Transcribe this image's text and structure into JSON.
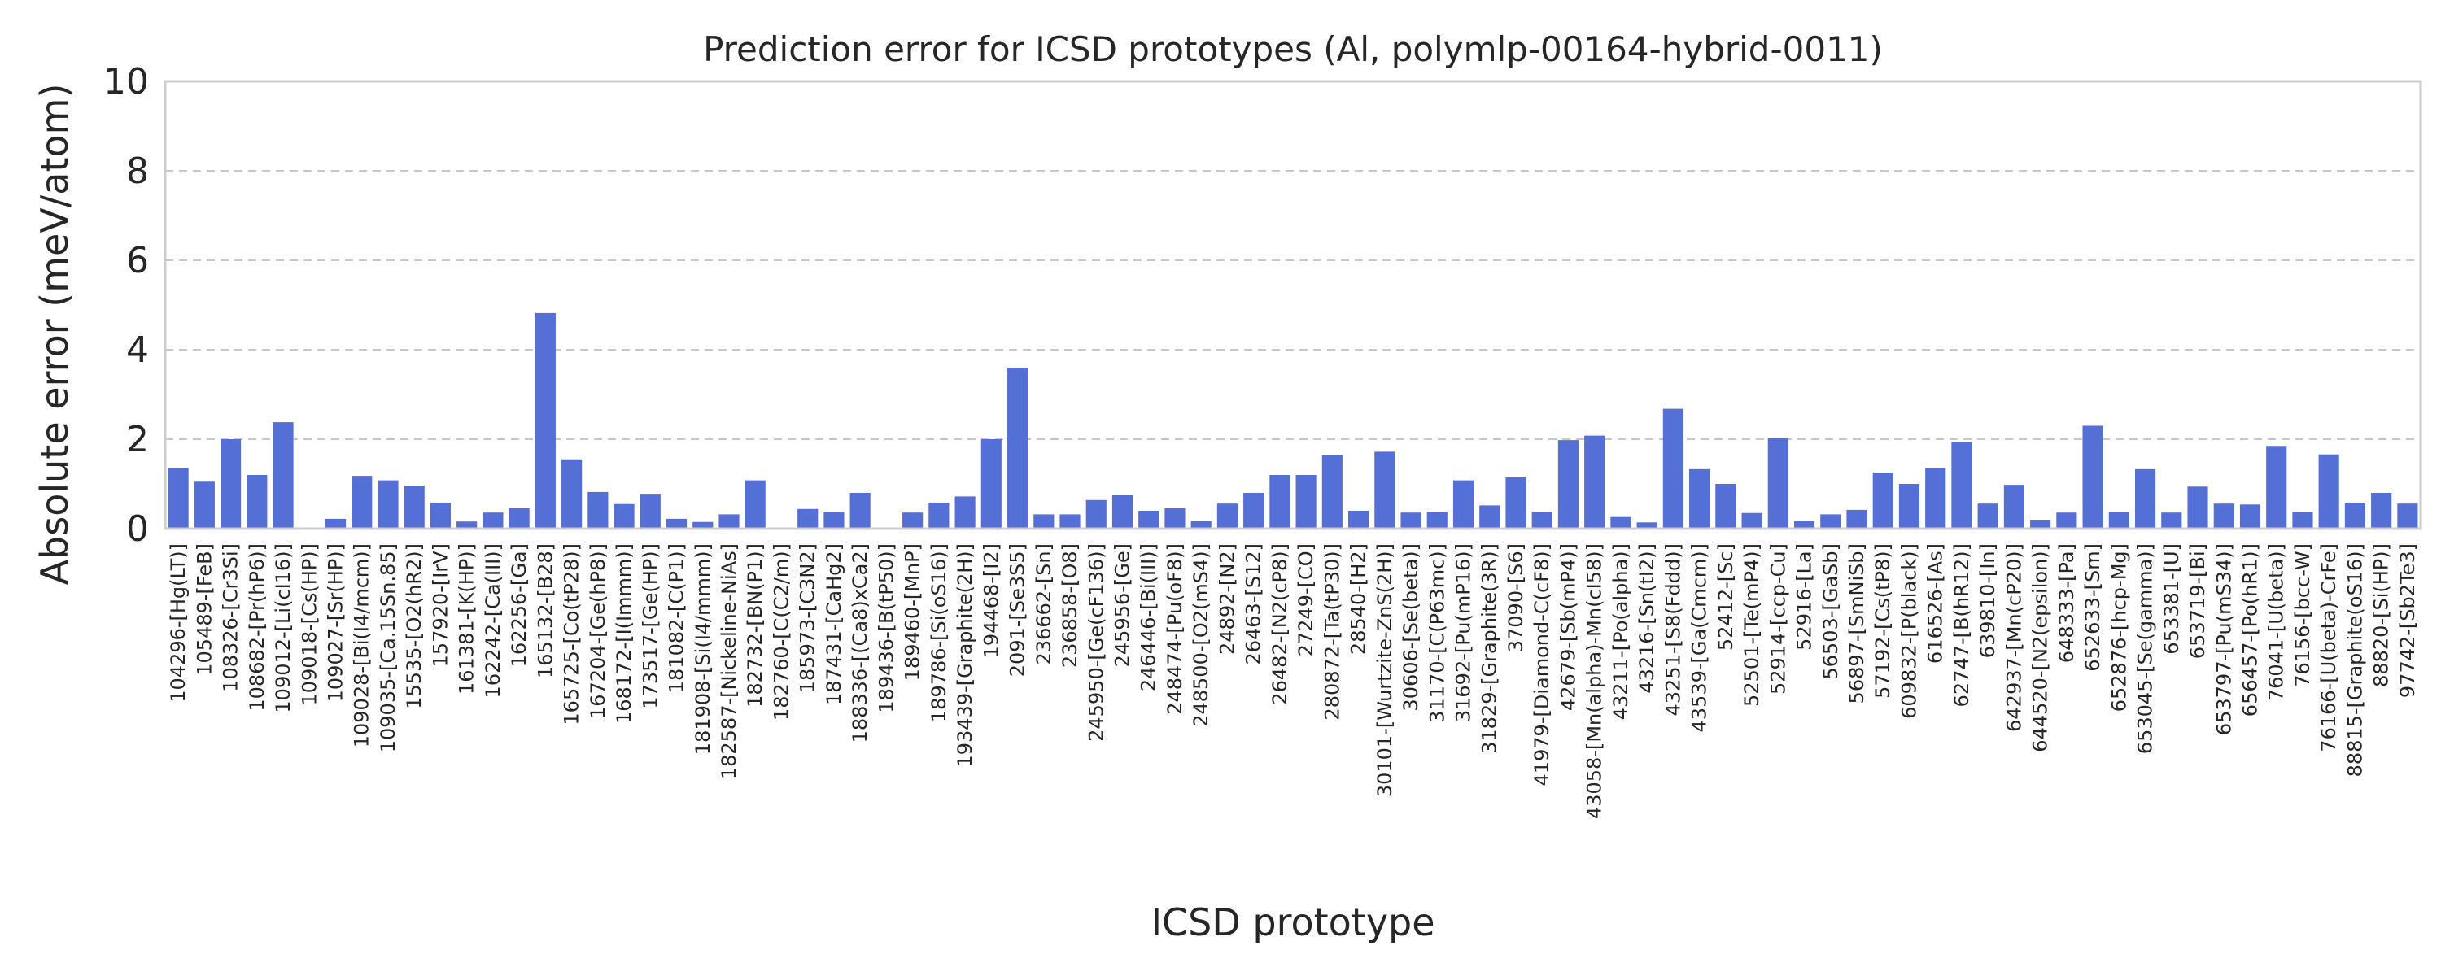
{
  "chart_data": {
    "type": "bar",
    "title": "Prediction error for ICSD prototypes (Al, polymlp-00164-hybrid-0011)",
    "xlabel": "ICSD prototype",
    "ylabel": "Absolute error (meV/atom)",
    "ylim": [
      0,
      10
    ],
    "yticks": [
      0,
      2,
      4,
      6,
      8,
      10
    ],
    "grid": true,
    "colors": {
      "bar": "#5470d6",
      "grid": "#c8c8c8",
      "frame": "#cccccc"
    },
    "categories": [
      "104296-[Hg(LT)]",
      "105489-[FeB]",
      "108326-[Cr3Si]",
      "108682-[Pr(hP6)]",
      "109012-[Li(cI16)]",
      "109018-[Cs(HP)]",
      "109027-[Sr(HP)]",
      "109028-[Bi(I4/mcm)]",
      "109035-[Ca.15Sn.85]",
      "15535-[O2(hR2)]",
      "157920-[IrV]",
      "161381-[K(HP)]",
      "162242-[Ca(III)]",
      "162256-[Ga]",
      "165132-[B28]",
      "165725-[Co(tP28)]",
      "167204-[Ge(hP8)]",
      "168172-[I(Immm)]",
      "173517-[Ge(HP)]",
      "181082-[C(P1)]",
      "181908-[Si(I4/mmm)]",
      "182587-[Nickeline-NiAs]",
      "182732-[BN(P1)]",
      "182760-[C(C2/m)]",
      "185973-[C3N2]",
      "187431-[CaHg2]",
      "188336-[(Ca8)xCa2]",
      "189436-[B(tP50)]",
      "189460-[MnP]",
      "189786-[Si(oS16)]",
      "193439-[Graphite(2H)]",
      "194468-[I2]",
      "2091-[Se3S5]",
      "236662-[Sn]",
      "236858-[O8]",
      "245950-[Ge(cF136)]",
      "245956-[Ge]",
      "246446-[Bi(III)]",
      "248474-[Pu(oF8)]",
      "248500-[O2(mS4)]",
      "24892-[N2]",
      "26463-[S12]",
      "26482-[N2(cP8)]",
      "27249-[CO]",
      "280872-[Ta(tP30)]",
      "28540-[H2]",
      "30101-[Wurtzite-ZnS(2H)]",
      "30606-[Se(beta)]",
      "31170-[C(P63mc)]",
      "31692-[Pu(mP16)]",
      "31829-[Graphite(3R)]",
      "37090-[S6]",
      "41979-[Diamond-C(cF8)]",
      "42679-[Sb(mP4)]",
      "43058-[Mn(alpha)-Mn(cI58)]",
      "43211-[Po(alpha)]",
      "43216-[Sn(tI2)]",
      "43251-[S8(Fddd)]",
      "43539-[Ga(Cmcm)]",
      "52412-[Sc]",
      "52501-[Te(mP4)]",
      "52914-[ccp-Cu]",
      "52916-[La]",
      "56503-[GaSb]",
      "56897-[SmNiSb]",
      "57192-[Cs(tP8)]",
      "609832-[P(black)]",
      "616526-[As]",
      "62747-[B(hR12)]",
      "639810-[In]",
      "642937-[Mn(cP20)]",
      "644520-[N2(epsilon)]",
      "648333-[Pa]",
      "652633-[Sm]",
      "652876-[hcp-Mg]",
      "653045-[Se(gamma)]",
      "653381-[U]",
      "653719-[Bi]",
      "653797-[Pu(mS34)]",
      "656457-[Po(hR1)]",
      "76041-[U(beta)]",
      "76156-[bcc-W]",
      "76166-[U(beta)-CrFe]",
      "88815-[Graphite(oS16)]",
      "88820-[Si(HP)]",
      "97742-[Sb2Te3]"
    ],
    "values": [
      1.35,
      1.05,
      2.0,
      1.2,
      2.38,
      0.0,
      0.22,
      1.18,
      1.08,
      0.96,
      0.58,
      0.16,
      0.36,
      0.46,
      4.82,
      1.55,
      0.82,
      0.55,
      0.78,
      0.22,
      0.15,
      0.32,
      1.08,
      0.0,
      0.44,
      0.38,
      0.8,
      0.0,
      0.36,
      0.58,
      0.72,
      2.0,
      3.6,
      0.32,
      0.32,
      0.64,
      0.76,
      0.4,
      0.46,
      0.17,
      0.56,
      0.8,
      1.2,
      1.2,
      1.64,
      0.4,
      1.72,
      0.36,
      0.38,
      1.08,
      0.52,
      1.15,
      0.38,
      1.98,
      2.08,
      0.26,
      0.14,
      2.68,
      1.33,
      1.0,
      0.35,
      2.03,
      0.18,
      0.32,
      0.42,
      1.25,
      1.0,
      1.35,
      1.93,
      0.56,
      0.98,
      0.2,
      0.36,
      2.3,
      0.38,
      1.33,
      0.36,
      0.94,
      0.56,
      0.54,
      1.85,
      0.38,
      1.66,
      0.58,
      0.8,
      0.56
    ]
  }
}
